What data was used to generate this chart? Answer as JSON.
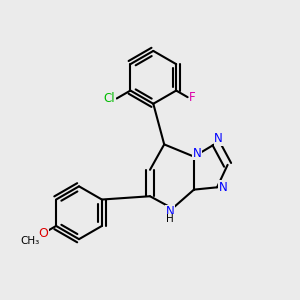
{
  "background_color": "#ebebeb",
  "bond_color": "#000000",
  "bond_width": 1.5,
  "atom_colors": {
    "N": "#0000ff",
    "Cl": "#00bb00",
    "F": "#dd00aa",
    "O": "#dd0000",
    "C": "#000000"
  },
  "font_size": 8.5,
  "fig_size": [
    3.0,
    3.0
  ],
  "dpi": 100
}
